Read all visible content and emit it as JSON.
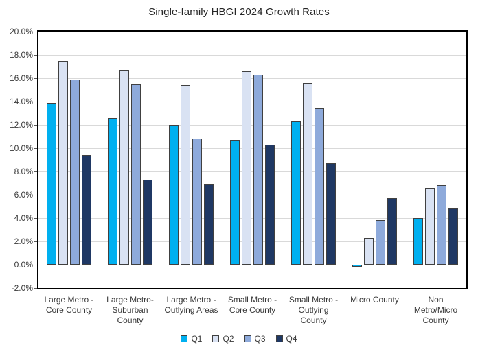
{
  "chart_data": {
    "type": "bar",
    "title": "Single-family HBGI 2024 Growth Rates",
    "categories": [
      "Large Metro -\nCore County",
      "Large Metro-\nSuburban\nCounty",
      "Large Metro -\nOutlying Areas",
      "Small Metro -\nCore County",
      "Small Metro -\nOutlying\nCounty",
      "Micro County",
      "Non\nMetro/Micro\nCounty"
    ],
    "series": [
      {
        "name": "Q1",
        "color": "#00B0F0",
        "values": [
          13.9,
          12.6,
          12.0,
          10.7,
          12.3,
          -0.2,
          4.0
        ]
      },
      {
        "name": "Q2",
        "color": "#D9E2F3",
        "values": [
          17.5,
          16.7,
          15.4,
          16.6,
          15.6,
          2.3,
          6.6
        ]
      },
      {
        "name": "Q3",
        "color": "#8EAADB",
        "values": [
          15.9,
          15.5,
          10.8,
          16.3,
          13.4,
          3.8,
          6.8
        ]
      },
      {
        "name": "Q4",
        "color": "#1F3864",
        "values": [
          9.4,
          7.3,
          6.9,
          10.3,
          8.7,
          5.7,
          4.8
        ]
      }
    ],
    "xlabel": "",
    "ylabel": "",
    "ylim": [
      -2,
      20
    ],
    "ytick_step": 2,
    "ytick_labels": [
      "20.0%",
      "18.0%",
      "16.0%",
      "14.0%",
      "12.0%",
      "10.0%",
      "8.0%",
      "6.0%",
      "4.0%",
      "2.0%",
      "0.0%",
      "-2.0%"
    ],
    "grid": true,
    "legend_position": "bottom",
    "colors": {
      "bar_border": "#404040",
      "gridline": "#D9D9D9",
      "plot_border": "#000000",
      "text": "#3A3A3A",
      "background": "#FFFFFF"
    }
  }
}
